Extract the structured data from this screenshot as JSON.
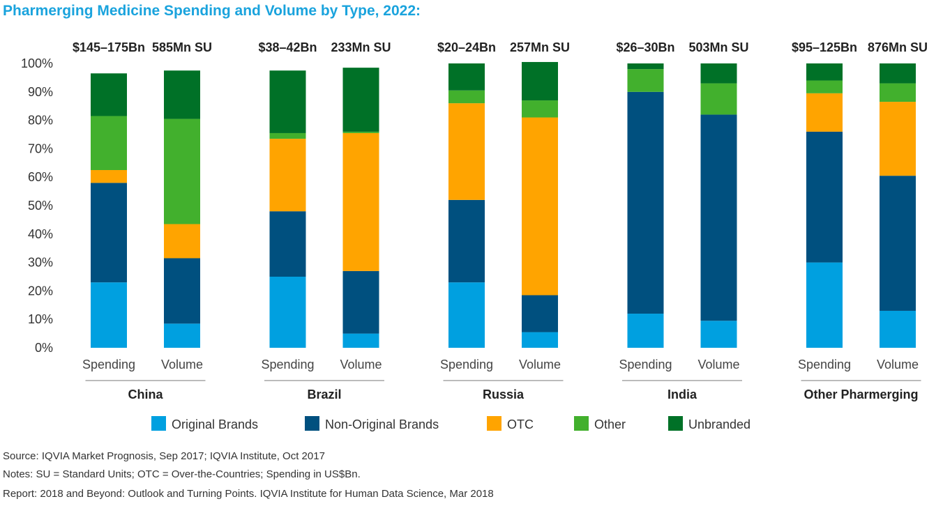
{
  "chart_data": {
    "type": "bar",
    "stacked": true,
    "title": "Pharmerging Medicine Spending and Volume by Type, 2022:",
    "ylim": [
      0,
      100
    ],
    "y_ticks": [
      "0%",
      "10%",
      "20%",
      "30%",
      "40%",
      "50%",
      "60%",
      "70%",
      "80%",
      "90%",
      "100%"
    ],
    "bar_labels": [
      "Spending",
      "Volume"
    ],
    "legend_position": "bottom",
    "series": [
      {
        "name": "Original Brands",
        "color": "#00a0e0"
      },
      {
        "name": "Non-Original Brands",
        "color": "#00507f"
      },
      {
        "name": "OTC",
        "color": "#ffa400"
      },
      {
        "name": "Other",
        "color": "#42b02d"
      },
      {
        "name": "Unbranded",
        "color": "#007127"
      }
    ],
    "groups": [
      {
        "name": "China",
        "bars": [
          {
            "label": "Spending",
            "header": "$145–175Bn",
            "values": [
              23,
              35,
              4.5,
              19,
              15
            ]
          },
          {
            "label": "Volume",
            "header": "585Mn SU",
            "values": [
              8.5,
              23,
              12,
              37,
              17
            ]
          }
        ]
      },
      {
        "name": "Brazil",
        "bars": [
          {
            "label": "Spending",
            "header": "$38–42Bn",
            "values": [
              25,
              23,
              25.5,
              2,
              22
            ]
          },
          {
            "label": "Volume",
            "header": "233Mn SU",
            "values": [
              5,
              22,
              48.5,
              0.5,
              22.5
            ]
          }
        ]
      },
      {
        "name": "Russia",
        "bars": [
          {
            "label": "Spending",
            "header": "$20–24Bn",
            "values": [
              23,
              29,
              34,
              4.5,
              9.5
            ]
          },
          {
            "label": "Volume",
            "header": "257Mn SU",
            "values": [
              5.5,
              13,
              62.5,
              6,
              13.5
            ]
          }
        ]
      },
      {
        "name": "India",
        "bars": [
          {
            "label": "Spending",
            "header": "$26–30Bn",
            "values": [
              12,
              78,
              0,
              8,
              2
            ]
          },
          {
            "label": "Volume",
            "header": "503Mn SU",
            "values": [
              9.5,
              72.5,
              0,
              11,
              7
            ]
          }
        ]
      },
      {
        "name": "Other Pharmerging",
        "bars": [
          {
            "label": "Spending",
            "header": "$95–125Bn",
            "values": [
              30,
              46,
              13.5,
              4.5,
              6
            ]
          },
          {
            "label": "Volume",
            "header": "876Mn SU",
            "values": [
              13,
              47.5,
              26,
              6.5,
              7
            ]
          }
        ]
      }
    ]
  },
  "footnotes": {
    "source": "Source: IQVIA Market Prognosis, Sep 2017; IQVIA Institute, Oct 2017",
    "notes": "Notes: SU = Standard Units; OTC = Over-the-Countries; Spending in US$Bn.",
    "report": "Report: 2018 and Beyond: Outlook and Turning Points. IQVIA Institute for Human Data Science, Mar 2018"
  }
}
